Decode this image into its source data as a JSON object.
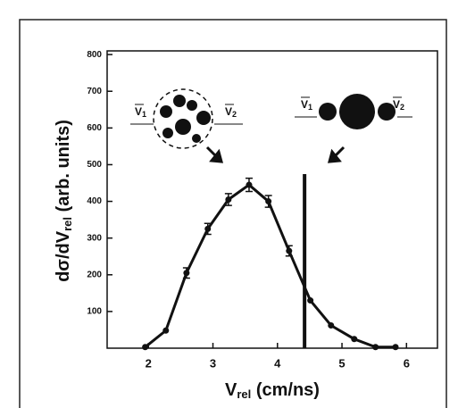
{
  "chart_data": {
    "type": "line",
    "x_label": {
      "main": "V",
      "sub": "rel",
      "unit": " (cm/ns)"
    },
    "y_label": {
      "main": "dσ/dV",
      "sub": "rel",
      "unit": " (arb. units)"
    },
    "xlim": [
      1.36,
      6.48
    ],
    "ylim": [
      0,
      810
    ],
    "xticks": [
      2,
      3,
      4,
      5,
      6
    ],
    "yticks": [
      100,
      200,
      300,
      400,
      500,
      600,
      700,
      800
    ],
    "grid": false,
    "series": [
      {
        "color": "#111111",
        "x": [
          1.95,
          2.27,
          2.59,
          2.92,
          3.24,
          3.56,
          3.86,
          4.18,
          4.51,
          4.83,
          5.19,
          5.52,
          5.83
        ],
        "values": [
          3,
          48,
          205,
          325,
          405,
          445,
          400,
          265,
          130,
          62,
          25,
          3,
          3
        ],
        "errors": [
          0,
          0,
          14,
          15,
          16,
          18,
          16,
          14,
          0,
          0,
          0,
          0,
          0
        ]
      }
    ],
    "vline": 4.42,
    "annotations": [
      {
        "main": "V",
        "sub": "1"
      },
      {
        "main": "V",
        "sub": "2"
      },
      {
        "main": "V",
        "sub": "1"
      },
      {
        "main": "V",
        "sub": "2"
      }
    ]
  }
}
